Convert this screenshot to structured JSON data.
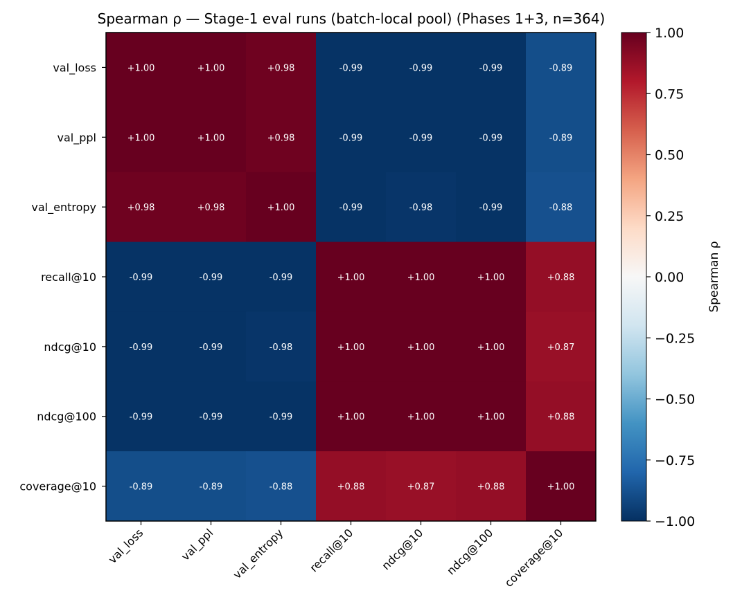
{
  "chart_data": {
    "type": "heatmap",
    "title": "Spearman ρ — Stage-1 eval runs (batch-local pool) (Phases 1+3, n=364)",
    "rows": [
      "val_loss",
      "val_ppl",
      "val_entropy",
      "recall@10",
      "ndcg@10",
      "ndcg@100",
      "coverage@10"
    ],
    "columns": [
      "val_loss",
      "val_ppl",
      "val_entropy",
      "recall@10",
      "ndcg@10",
      "ndcg@100",
      "coverage@10"
    ],
    "values": [
      [
        1.0,
        1.0,
        0.98,
        -0.99,
        -0.99,
        -0.99,
        -0.89
      ],
      [
        1.0,
        1.0,
        0.98,
        -0.99,
        -0.99,
        -0.99,
        -0.89
      ],
      [
        0.98,
        0.98,
        1.0,
        -0.99,
        -0.98,
        -0.99,
        -0.88
      ],
      [
        -0.99,
        -0.99,
        -0.99,
        1.0,
        1.0,
        1.0,
        0.88
      ],
      [
        -0.99,
        -0.99,
        -0.98,
        1.0,
        1.0,
        1.0,
        0.87
      ],
      [
        -0.99,
        -0.99,
        -0.99,
        1.0,
        1.0,
        1.0,
        0.88
      ],
      [
        -0.89,
        -0.89,
        -0.88,
        0.88,
        0.87,
        0.88,
        1.0
      ]
    ],
    "colorbar": {
      "label": "Spearman ρ",
      "range": [
        -1.0,
        1.0
      ],
      "ticks": [
        "1.00",
        "0.75",
        "0.50",
        "0.25",
        "0.00",
        "−0.25",
        "−0.50",
        "−0.75",
        "−1.00"
      ],
      "colormap": "RdBu_r"
    },
    "cell_label_color": "#ffffff"
  }
}
